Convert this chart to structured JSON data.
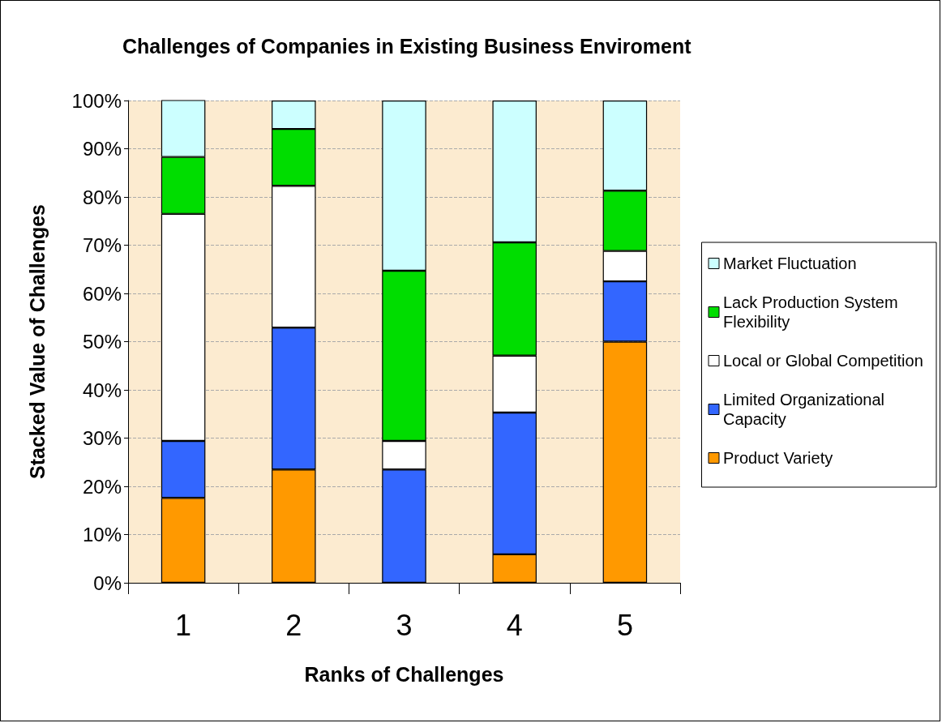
{
  "chart_data": {
    "type": "bar",
    "stacked": true,
    "title": "Challenges of Companies in Existing Business Enviroment",
    "xlabel": "Ranks of Challenges",
    "ylabel": "Stacked Value of Challenges",
    "categories": [
      "1",
      "2",
      "3",
      "4",
      "5"
    ],
    "series": [
      {
        "name": "Product Variety",
        "color": "#ff9900",
        "values": [
          17.6,
          23.5,
          0,
          5.9,
          50
        ]
      },
      {
        "name": "Limited Organizational Capacity",
        "color": "#3366ff",
        "values": [
          11.8,
          29.4,
          23.5,
          29.4,
          12.5
        ]
      },
      {
        "name": "Local or Global Competition",
        "color": "#ffffff",
        "values": [
          47.1,
          29.4,
          5.9,
          11.8,
          6.3
        ]
      },
      {
        "name": "Lack Production System Flexibility",
        "color": "#00dd00",
        "values": [
          11.8,
          11.8,
          35.3,
          23.5,
          12.5
        ]
      },
      {
        "name": "Market Fluctuation",
        "color": "#ccffff",
        "values": [
          11.8,
          5.9,
          35.3,
          29.4,
          18.7
        ]
      }
    ],
    "ylim": [
      0,
      100
    ],
    "yticks": [
      {
        "value": 0,
        "label": "0%"
      },
      {
        "value": 10,
        "label": "10%"
      },
      {
        "value": 20,
        "label": "20%"
      },
      {
        "value": 30,
        "label": "30%"
      },
      {
        "value": 40,
        "label": "40%"
      },
      {
        "value": 50,
        "label": "50%"
      },
      {
        "value": 60,
        "label": "60%"
      },
      {
        "value": 70,
        "label": "70%"
      },
      {
        "value": 80,
        "label": "80%"
      },
      {
        "value": 90,
        "label": "90%"
      },
      {
        "value": 100,
        "label": "100%"
      }
    ],
    "grid": "y",
    "legend": "right"
  }
}
